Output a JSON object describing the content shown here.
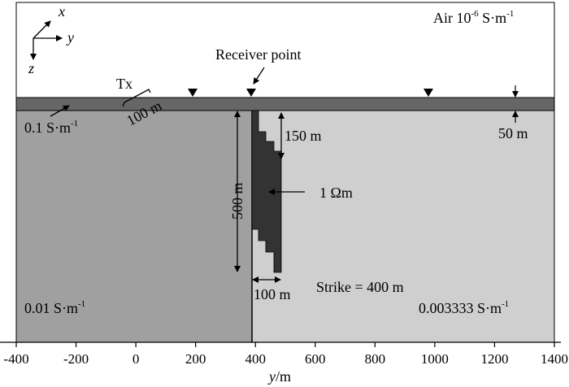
{
  "diagram": {
    "axes": {
      "x_label": "x",
      "y_label": "y",
      "z_label": "z",
      "x_axis_title_italic": "y",
      "x_axis_title_unit": "/m",
      "ticks": [
        "-400",
        "-200",
        "0",
        "200",
        "400",
        "600",
        "800",
        "1000",
        "1200",
        "1400"
      ]
    },
    "layers": {
      "air": {
        "label": "Air 10",
        "exp": "-6",
        "unit": " S·m",
        "unit_exp": "-1"
      },
      "surface_layer": {
        "label": "0.1 S·m",
        "unit_exp": "-1",
        "thickness": "50 m"
      },
      "left_half": {
        "label": "0.01 S·m",
        "unit_exp": "-1"
      },
      "right_half": {
        "label": "0.003333 S·m",
        "unit_exp": "-1"
      }
    },
    "annotations": {
      "tx": "Tx",
      "tx_length": "100 m",
      "receiver": "Receiver point",
      "depth_500": "500 m",
      "depth_150": "150 m",
      "width_100": "100 m",
      "resistivity": "1 Ωm",
      "strike": "Strike = 400 m"
    },
    "colors": {
      "air": "#ffffff",
      "surface_layer": "#666666",
      "left_half": "#a0a0a0",
      "right_half": "#cfcfcf",
      "body": "#333333",
      "outline": "#000000"
    },
    "icons": [
      "receiver-triangle-icon",
      "arrow-icon"
    ]
  }
}
